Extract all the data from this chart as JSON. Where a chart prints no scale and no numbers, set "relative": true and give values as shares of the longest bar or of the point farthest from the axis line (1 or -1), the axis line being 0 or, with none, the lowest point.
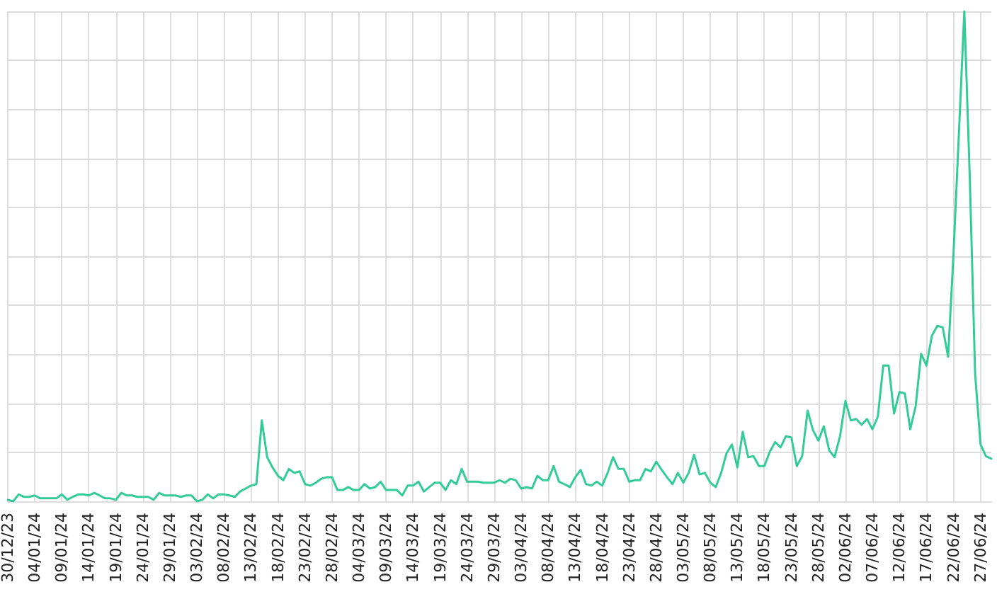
{
  "chart_data": {
    "type": "line",
    "relative": true,
    "grid": true,
    "marker": "none",
    "line_style": "solid",
    "categories": [
      "30/12/23",
      null,
      null,
      null,
      null,
      "04/01/24",
      null,
      null,
      null,
      null,
      "09/01/24",
      null,
      null,
      null,
      null,
      "14/01/24",
      null,
      null,
      null,
      null,
      "19/01/24",
      null,
      null,
      null,
      null,
      "24/01/24",
      null,
      null,
      null,
      null,
      "29/01/24",
      null,
      null,
      null,
      null,
      "03/02/24",
      null,
      null,
      null,
      null,
      "08/02/24",
      null,
      null,
      null,
      null,
      "13/02/24",
      null,
      null,
      null,
      null,
      "18/02/24",
      null,
      null,
      null,
      null,
      "23/02/24",
      null,
      null,
      null,
      null,
      "28/02/24",
      null,
      null,
      null,
      null,
      "04/03/24",
      null,
      null,
      null,
      null,
      "09/03/24",
      null,
      null,
      null,
      null,
      "14/03/24",
      null,
      null,
      null,
      null,
      "19/03/24",
      null,
      null,
      null,
      null,
      "24/03/24",
      null,
      null,
      null,
      null,
      "29/03/24",
      null,
      null,
      null,
      null,
      "03/04/24",
      null,
      null,
      null,
      null,
      "08/04/24",
      null,
      null,
      null,
      null,
      "13/04/24",
      null,
      null,
      null,
      null,
      "18/04/24",
      null,
      null,
      null,
      null,
      "23/04/24",
      null,
      null,
      null,
      null,
      "28/04/24",
      null,
      null,
      null,
      null,
      "03/05/24",
      null,
      null,
      null,
      null,
      "08/05/24",
      null,
      null,
      null,
      null,
      "13/05/24",
      null,
      null,
      null,
      null,
      "18/05/24",
      null,
      null,
      null,
      null,
      "23/05/24",
      null,
      null,
      null,
      null,
      "28/05/24",
      null,
      null,
      null,
      null,
      "02/06/24",
      null,
      null,
      null,
      null,
      "07/06/24",
      null,
      null,
      null,
      null,
      "12/06/24",
      null,
      null,
      null,
      null,
      "17/06/24",
      null,
      null,
      null,
      null,
      "22/06/24",
      null,
      null,
      null,
      null,
      "27/06/24",
      null,
      null
    ],
    "series": [
      {
        "color": "#33cc99",
        "values": [
          0.003,
          0,
          0.014,
          0.009,
          0.009,
          0.012,
          0.006,
          0.006,
          0.006,
          0.006,
          0.014,
          0.003,
          0.009,
          0.014,
          0.014,
          0.012,
          0.017,
          0.012,
          0.006,
          0.006,
          0.003,
          0.017,
          0.012,
          0.012,
          0.009,
          0.009,
          0.009,
          0.003,
          0.017,
          0.012,
          0.012,
          0.012,
          0.009,
          0.012,
          0.012,
          0,
          0.003,
          0.014,
          0.006,
          0.014,
          0.014,
          0.012,
          0.009,
          0.02,
          0.026,
          0.032,
          0.035,
          0.165,
          0.09,
          0.069,
          0.052,
          0.043,
          0.066,
          0.058,
          0.061,
          0.035,
          0.032,
          0.038,
          0.046,
          0.049,
          0.049,
          0.023,
          0.023,
          0.029,
          0.023,
          0.023,
          0.035,
          0.026,
          0.029,
          0.04,
          0.023,
          0.023,
          0.023,
          0.012,
          0.032,
          0.032,
          0.04,
          0.02,
          0.029,
          0.038,
          0.038,
          0.023,
          0.043,
          0.035,
          0.066,
          0.04,
          0.04,
          0.04,
          0.038,
          0.038,
          0.038,
          0.043,
          0.038,
          0.046,
          0.043,
          0.026,
          0.029,
          0.026,
          0.052,
          0.043,
          0.043,
          0.072,
          0.04,
          0.035,
          0.029,
          0.049,
          0.064,
          0.035,
          0.032,
          0.04,
          0.032,
          0.058,
          0.09,
          0.066,
          0.066,
          0.04,
          0.043,
          0.043,
          0.066,
          0.061,
          0.081,
          0.064,
          0.049,
          0.035,
          0.058,
          0.038,
          0.058,
          0.095,
          0.055,
          0.058,
          0.038,
          0.029,
          0.058,
          0.098,
          0.116,
          0.069,
          0.142,
          0.09,
          0.092,
          0.072,
          0.072,
          0.101,
          0.121,
          0.11,
          0.133,
          0.13,
          0.072,
          0.092,
          0.185,
          0.145,
          0.124,
          0.153,
          0.104,
          0.09,
          0.133,
          0.205,
          0.165,
          0.168,
          0.156,
          0.168,
          0.147,
          0.173,
          0.277,
          0.277,
          0.179,
          0.223,
          0.22,
          0.147,
          0.194,
          0.301,
          0.277,
          0.338,
          0.358,
          0.355,
          0.295,
          0.506,
          0.751,
          1,
          0.665,
          0.26,
          0.116,
          0.092,
          0.087
        ]
      }
    ]
  }
}
